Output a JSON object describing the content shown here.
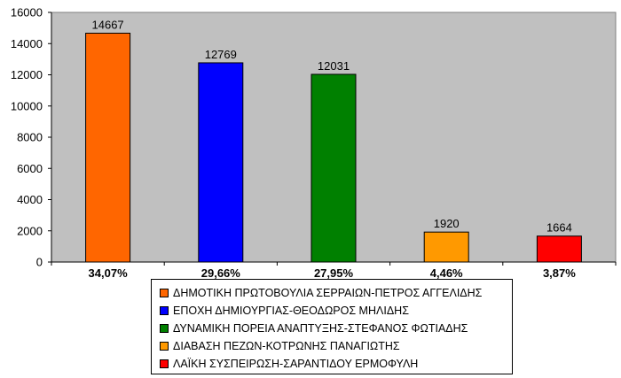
{
  "chart_data": {
    "type": "bar",
    "categories": [
      "34,07%",
      "29,66%",
      "27,95%",
      "4,46%",
      "3,87%"
    ],
    "values": [
      14667,
      12769,
      12031,
      1920,
      1664
    ],
    "data_labels": [
      "14667",
      "12769",
      "12031",
      "1920",
      "1664"
    ],
    "colors": [
      "#ff6600",
      "#0000ff",
      "#008000",
      "#ff9900",
      "#ff0000"
    ],
    "y_ticks": [
      "0",
      "2000",
      "4000",
      "6000",
      "8000",
      "10000",
      "12000",
      "14000",
      "16000"
    ],
    "ylim": [
      0,
      16000
    ],
    "grid": false,
    "plot_background": "#c0c0c0",
    "legend_position": "bottom",
    "legend": [
      "ΔΗΜΟΤΙΚΗ ΠΡΩΤΟΒΟΥΛΙΑ ΣΕΡΡΑΙΩΝ-ΠΕΤΡΟΣ ΑΓΓΕΛΙΔΗΣ",
      "ΕΠΟΧΗ ΔΗΜΙΟΥΡΓΙΑΣ-ΘΕΟΔΩΡΟΣ ΜΗΛΙΔΗΣ",
      "ΔΥΝΑΜΙΚΗ ΠΟΡΕΙΑ ΑΝΑΠΤΥΞΗΣ-ΣΤΕΦΑΝΟΣ ΦΩΤΙΑΔΗΣ",
      "ΔΙΑΒΑΣΗ ΠΕΖΩΝ-ΚΟΤΡΩΝΗΣ ΠΑΝΑΓΙΩΤΗΣ",
      "ΛΑΪΚΗ ΣΥΣΠΕΙΡΩΣΗ-ΣΑΡΑΝΤΙΔΟΥ ΕΡΜΟΦΥΛΗ"
    ]
  }
}
